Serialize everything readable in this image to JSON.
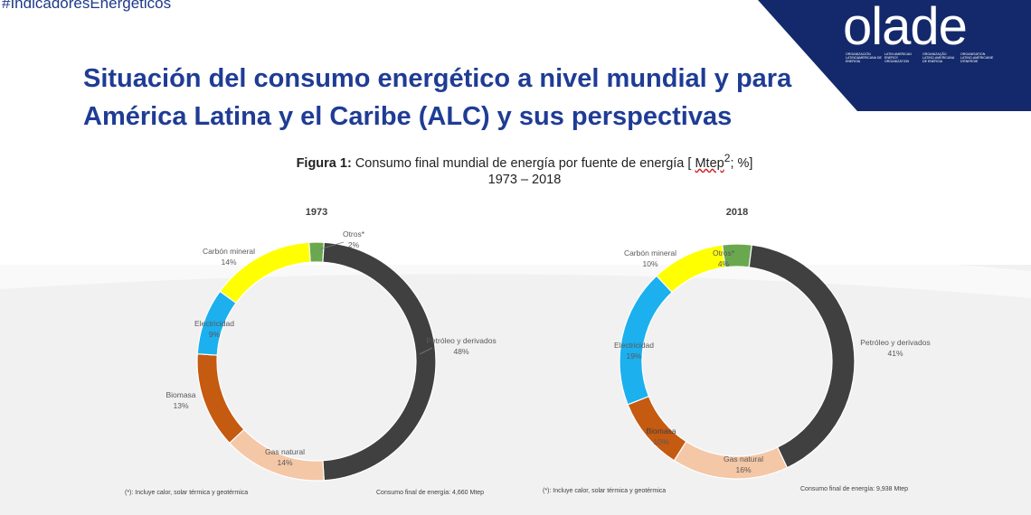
{
  "header": {
    "hashtag": "#IndicadoresEnergeticos",
    "logo_text": "olade",
    "logo_subtext": [
      "ORGANIZACIÓN LATINOAMERICANA DE ENERGÍA",
      "LATIN AMERICAN ENERGY ORGANIZATION",
      "ORGANIZAÇÃO LATINO-AMERICANA DE ENERGIA",
      "ORGANISATION LATINO-AMÉRICAINE D'ENERGIE"
    ]
  },
  "title_line1": "Situación del consumo energético a nivel mundial y para",
  "title_line2": "América Latina y el Caribe (ALC) y sus perspectivas",
  "figure": {
    "label": "Figura 1:",
    "text_before": "Consumo final mundial de energía por fuente de energía [",
    "unit": "Mtep",
    "superscript": "2",
    "text_after": "; %]",
    "years": "1973 – 2018"
  },
  "colors": {
    "brand_blue": "#1f3c95",
    "logo_bg": "#13296b",
    "petroleo": "#404040",
    "gas_natural": "#f4c7a7",
    "biomasa": "#c55a11",
    "electricidad": "#1cb0ee",
    "carbon": "#ffff00",
    "otros": "#6aa84f"
  },
  "chart_data": [
    {
      "type": "pie",
      "donut": true,
      "title": "1973",
      "categories": [
        "Petróleo y derivados",
        "Gas natural",
        "Biomasa",
        "Electricidad",
        "Carbón mineral",
        "Otros*"
      ],
      "values": [
        48,
        14,
        13,
        9,
        14,
        2
      ],
      "value_labels": [
        "48%",
        "14%",
        "13%",
        "9%",
        "14%",
        "2%"
      ],
      "footnote": "(*): Incluye calor, solar térmica y geotérmica",
      "total": "Consumo final de energía: 4,660 Mtep"
    },
    {
      "type": "pie",
      "donut": true,
      "title": "2018",
      "categories": [
        "Petróleo y derivados",
        "Gas natural",
        "Biomasa",
        "Electricidad",
        "Carbón mineral",
        "Otros*"
      ],
      "values": [
        41,
        16,
        10,
        19,
        10,
        4
      ],
      "value_labels": [
        "41%",
        "16%",
        "10%",
        "19%",
        "10%",
        "4%"
      ],
      "footnote": "(*): Incluye calor, solar térmica y geotérmica",
      "total": "Consumo final de energía: 9,938 Mtep"
    }
  ]
}
